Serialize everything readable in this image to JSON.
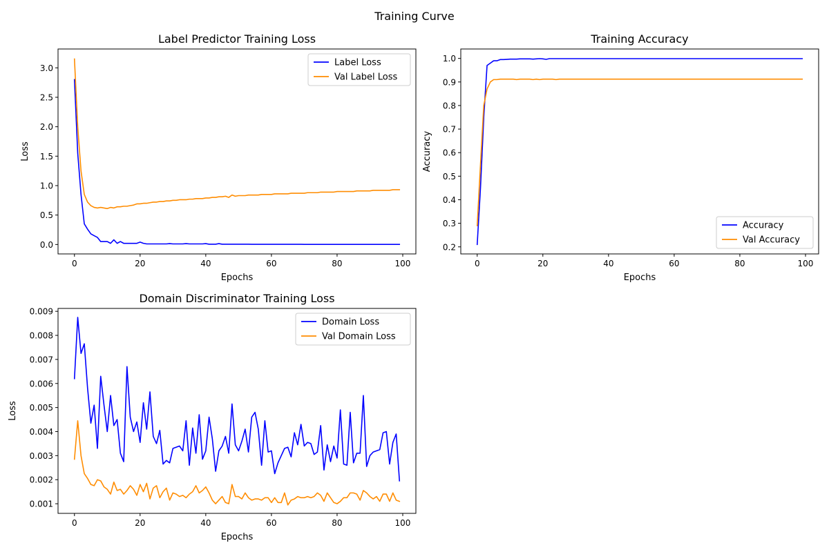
{
  "figure": {
    "title": "Training Curve"
  },
  "colors": {
    "train": "#0000ff",
    "val": "#ff8c00",
    "axis": "#000000"
  },
  "chart_data": [
    {
      "type": "line",
      "title": "Label Predictor Training Loss",
      "xlabel": "Epochs",
      "ylabel": "Loss",
      "xlim": [
        -5,
        104
      ],
      "ylim": [
        -0.16,
        3.32
      ],
      "xticks": [
        0,
        20,
        40,
        60,
        80,
        100
      ],
      "yticks": [
        0.0,
        0.5,
        1.0,
        1.5,
        2.0,
        2.5,
        3.0
      ],
      "ytick_labels": [
        "0.0",
        "0.5",
        "1.0",
        "1.5",
        "2.0",
        "2.5",
        "3.0"
      ],
      "legend": "upper right",
      "grid": false,
      "x_start": 0,
      "series": [
        {
          "name": "Label Loss",
          "color": "#0000ff",
          "values": [
            2.8,
            1.55,
            0.85,
            0.35,
            0.26,
            0.18,
            0.15,
            0.12,
            0.05,
            0.05,
            0.05,
            0.02,
            0.08,
            0.02,
            0.05,
            0.02,
            0.02,
            0.02,
            0.02,
            0.02,
            0.04,
            0.02,
            0.01,
            0.01,
            0.01,
            0.01,
            0.01,
            0.01,
            0.01,
            0.015,
            0.01,
            0.01,
            0.01,
            0.01,
            0.015,
            0.01,
            0.01,
            0.01,
            0.01,
            0.01,
            0.015,
            0.005,
            0.005,
            0.005,
            0.015,
            0.005,
            0.005,
            0.005,
            0.005,
            0.005,
            0.005,
            0.005,
            0.005,
            0.005,
            0.003,
            0.003,
            0.003,
            0.003,
            0.003,
            0.003,
            0.003,
            0.003,
            0.003,
            0.003,
            0.003,
            0.003,
            0.003,
            0.003,
            0.003,
            0.003,
            0.002,
            0.002,
            0.002,
            0.002,
            0.002,
            0.002,
            0.002,
            0.002,
            0.002,
            0.002,
            0.002,
            0.002,
            0.002,
            0.002,
            0.002,
            0.002,
            0.002,
            0.002,
            0.002,
            0.002,
            0.002,
            0.002,
            0.002,
            0.002,
            0.002,
            0.002,
            0.002,
            0.002,
            0.002,
            0.002
          ]
        },
        {
          "name": "Val Label Loss",
          "color": "#ff8c00",
          "values": [
            3.15,
            2.0,
            1.25,
            0.85,
            0.72,
            0.66,
            0.63,
            0.62,
            0.63,
            0.62,
            0.61,
            0.63,
            0.62,
            0.64,
            0.64,
            0.65,
            0.65,
            0.66,
            0.67,
            0.69,
            0.69,
            0.7,
            0.7,
            0.71,
            0.72,
            0.72,
            0.73,
            0.73,
            0.74,
            0.74,
            0.75,
            0.75,
            0.76,
            0.76,
            0.76,
            0.77,
            0.77,
            0.78,
            0.78,
            0.78,
            0.79,
            0.79,
            0.8,
            0.8,
            0.81,
            0.81,
            0.82,
            0.8,
            0.84,
            0.82,
            0.83,
            0.83,
            0.83,
            0.84,
            0.84,
            0.84,
            0.84,
            0.85,
            0.85,
            0.85,
            0.85,
            0.86,
            0.86,
            0.86,
            0.86,
            0.86,
            0.87,
            0.87,
            0.87,
            0.87,
            0.87,
            0.88,
            0.88,
            0.88,
            0.88,
            0.89,
            0.89,
            0.89,
            0.89,
            0.89,
            0.9,
            0.9,
            0.9,
            0.9,
            0.9,
            0.9,
            0.91,
            0.91,
            0.91,
            0.91,
            0.91,
            0.92,
            0.92,
            0.92,
            0.92,
            0.92,
            0.92,
            0.93,
            0.93,
            0.93
          ]
        }
      ]
    },
    {
      "type": "line",
      "title": "Training Accuracy",
      "xlabel": "Epochs",
      "ylabel": "Accuracy",
      "xlim": [
        -5,
        104
      ],
      "ylim": [
        0.17,
        1.04
      ],
      "xticks": [
        0,
        20,
        40,
        60,
        80,
        100
      ],
      "yticks": [
        0.2,
        0.3,
        0.4,
        0.5,
        0.6,
        0.7,
        0.8,
        0.9,
        1.0
      ],
      "ytick_labels": [
        "0.2",
        "0.3",
        "0.4",
        "0.5",
        "0.6",
        "0.7",
        "0.8",
        "0.9",
        "1.0"
      ],
      "legend": "lower right",
      "grid": false,
      "x_start": 0,
      "series": [
        {
          "name": "Accuracy",
          "color": "#0000ff",
          "values": [
            0.21,
            0.45,
            0.75,
            0.97,
            0.98,
            0.99,
            0.99,
            0.995,
            0.995,
            0.996,
            0.997,
            0.997,
            0.997,
            0.998,
            0.998,
            0.998,
            0.998,
            0.997,
            0.998,
            0.999,
            0.998,
            0.996,
            0.999,
            0.999,
            0.999,
            0.999,
            0.999,
            0.999,
            0.999,
            0.999,
            0.999,
            0.999,
            0.999,
            0.999,
            0.999,
            0.999,
            0.999,
            0.999,
            0.999,
            0.999,
            0.999,
            0.999,
            0.999,
            0.999,
            0.999,
            0.999,
            0.999,
            0.999,
            0.999,
            0.999,
            0.999,
            0.999,
            0.999,
            0.999,
            0.999,
            0.999,
            0.999,
            0.999,
            0.999,
            0.999,
            0.999,
            0.999,
            0.999,
            0.999,
            0.999,
            0.999,
            0.999,
            0.999,
            0.999,
            0.999,
            0.999,
            0.999,
            0.999,
            0.999,
            0.999,
            0.999,
            0.999,
            0.999,
            0.999,
            0.999,
            0.999,
            0.999,
            0.999,
            0.999,
            0.999,
            0.999,
            0.999,
            0.999,
            0.999,
            0.999,
            0.999,
            0.999,
            0.999,
            0.999,
            0.999,
            0.999,
            0.999,
            0.999,
            0.999,
            0.999
          ]
        },
        {
          "name": "Val Accuracy",
          "color": "#ff8c00",
          "values": [
            0.29,
            0.55,
            0.8,
            0.87,
            0.9,
            0.91,
            0.91,
            0.912,
            0.912,
            0.912,
            0.912,
            0.912,
            0.91,
            0.912,
            0.912,
            0.912,
            0.912,
            0.91,
            0.912,
            0.91,
            0.912,
            0.912,
            0.912,
            0.912,
            0.91,
            0.912,
            0.912,
            0.912,
            0.912,
            0.912,
            0.912,
            0.912,
            0.912,
            0.912,
            0.912,
            0.912,
            0.912,
            0.912,
            0.912,
            0.912,
            0.912,
            0.912,
            0.912,
            0.912,
            0.912,
            0.912,
            0.912,
            0.912,
            0.912,
            0.912,
            0.912,
            0.912,
            0.912,
            0.912,
            0.912,
            0.912,
            0.912,
            0.912,
            0.912,
            0.912,
            0.912,
            0.912,
            0.912,
            0.912,
            0.912,
            0.912,
            0.912,
            0.912,
            0.912,
            0.912,
            0.912,
            0.912,
            0.912,
            0.912,
            0.912,
            0.912,
            0.912,
            0.912,
            0.912,
            0.912,
            0.912,
            0.912,
            0.912,
            0.912,
            0.912,
            0.912,
            0.912,
            0.912,
            0.912,
            0.912,
            0.912,
            0.912,
            0.912,
            0.912,
            0.912,
            0.912,
            0.912,
            0.912,
            0.912,
            0.912
          ]
        }
      ]
    },
    {
      "type": "line",
      "title": "Domain Discriminator Training Loss",
      "xlabel": "Epochs",
      "ylabel": "Loss",
      "xlim": [
        -5,
        104
      ],
      "ylim": [
        0.0006,
        0.00912
      ],
      "xticks": [
        0,
        20,
        40,
        60,
        80,
        100
      ],
      "yticks": [
        0.001,
        0.002,
        0.003,
        0.004,
        0.005,
        0.006,
        0.007,
        0.008,
        0.009
      ],
      "ytick_labels": [
        "0.001",
        "0.002",
        "0.003",
        "0.004",
        "0.005",
        "0.006",
        "0.007",
        "0.008",
        "0.009"
      ],
      "legend": "upper right",
      "grid": false,
      "x_start": 0,
      "series": [
        {
          "name": "Domain Loss",
          "color": "#0000ff",
          "values": [
            0.0062,
            0.00875,
            0.00725,
            0.00765,
            0.0058,
            0.00435,
            0.0051,
            0.0033,
            0.0063,
            0.0051,
            0.004,
            0.0055,
            0.00425,
            0.0045,
            0.0031,
            0.00275,
            0.0067,
            0.0046,
            0.004,
            0.0044,
            0.00355,
            0.0052,
            0.0041,
            0.00565,
            0.0038,
            0.0035,
            0.00405,
            0.00265,
            0.0028,
            0.0027,
            0.0033,
            0.00335,
            0.0034,
            0.0032,
            0.00445,
            0.0026,
            0.00415,
            0.0031,
            0.0047,
            0.00285,
            0.0032,
            0.0046,
            0.0037,
            0.00235,
            0.0032,
            0.0034,
            0.0038,
            0.0031,
            0.00515,
            0.00345,
            0.0032,
            0.0036,
            0.0041,
            0.00315,
            0.0046,
            0.0048,
            0.0041,
            0.0026,
            0.00445,
            0.00315,
            0.0032,
            0.00225,
            0.0027,
            0.003,
            0.0033,
            0.00335,
            0.00295,
            0.00395,
            0.00345,
            0.0043,
            0.0034,
            0.00355,
            0.0035,
            0.00305,
            0.00315,
            0.00425,
            0.0024,
            0.00345,
            0.00275,
            0.0034,
            0.0029,
            0.0049,
            0.00265,
            0.0026,
            0.0048,
            0.0027,
            0.0031,
            0.0031,
            0.0055,
            0.00255,
            0.003,
            0.00315,
            0.0032,
            0.00325,
            0.00395,
            0.004,
            0.00265,
            0.00355,
            0.0039,
            0.00195
          ]
        },
        {
          "name": "Val Domain Loss",
          "color": "#ff8c00",
          "values": [
            0.00285,
            0.00445,
            0.003,
            0.00225,
            0.00205,
            0.0018,
            0.00175,
            0.002,
            0.00195,
            0.0017,
            0.0016,
            0.0014,
            0.0019,
            0.00155,
            0.0016,
            0.0014,
            0.00155,
            0.00175,
            0.0016,
            0.00135,
            0.0018,
            0.0015,
            0.00185,
            0.0012,
            0.00165,
            0.00175,
            0.00125,
            0.0015,
            0.00165,
            0.00115,
            0.00145,
            0.0014,
            0.0013,
            0.00135,
            0.00125,
            0.0014,
            0.0015,
            0.00175,
            0.00145,
            0.00155,
            0.0017,
            0.00145,
            0.00115,
            0.001,
            0.00115,
            0.0013,
            0.00105,
            0.001,
            0.0018,
            0.0013,
            0.0013,
            0.0012,
            0.00145,
            0.00125,
            0.00115,
            0.0012,
            0.0012,
            0.00115,
            0.00125,
            0.00125,
            0.00105,
            0.00125,
            0.00105,
            0.00105,
            0.00145,
            0.00095,
            0.00115,
            0.0012,
            0.0013,
            0.00125,
            0.00125,
            0.0013,
            0.00125,
            0.0013,
            0.00145,
            0.00135,
            0.0011,
            0.00145,
            0.00125,
            0.00105,
            0.001,
            0.0011,
            0.00125,
            0.00125,
            0.00145,
            0.00145,
            0.0014,
            0.00115,
            0.00155,
            0.00145,
            0.0013,
            0.0012,
            0.0013,
            0.0011,
            0.0014,
            0.0014,
            0.0011,
            0.00145,
            0.00115,
            0.0011
          ]
        }
      ]
    }
  ]
}
